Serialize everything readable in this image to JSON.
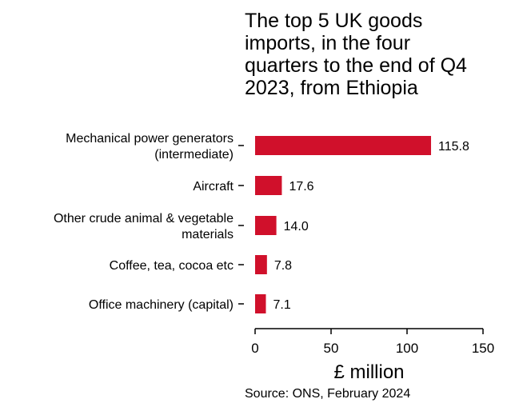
{
  "title_lines": [
    "The top 5 UK goods",
    "imports, in the four",
    "quarters to the end of Q4",
    "2023, from Ethiopia"
  ],
  "source": "Source: ONS, February 2024",
  "colors": {
    "bar": "#d0102b",
    "axis": "#000000",
    "text": "#000000"
  },
  "chart_data": {
    "type": "bar",
    "orientation": "horizontal",
    "title": "The top 5 UK goods imports, in the four quarters to the end of Q4 2023, from Ethiopia",
    "categories": [
      [
        "Mechanical power generators",
        "(intermediate)"
      ],
      [
        "Aircraft"
      ],
      [
        "Other crude animal & vegetable",
        "materials"
      ],
      [
        "Coffee, tea, cocoa etc"
      ],
      [
        "Office machinery (capital)"
      ]
    ],
    "values": [
      115.8,
      17.6,
      14.0,
      7.8,
      7.1
    ],
    "value_labels": [
      "115.8",
      "17.6",
      "14.0",
      "7.8",
      "7.1"
    ],
    "xlabel": "£ million",
    "ylabel": "",
    "xlim": [
      0,
      150
    ],
    "xticks": [
      0,
      50,
      100,
      150
    ],
    "grid": false,
    "legend": "none"
  }
}
